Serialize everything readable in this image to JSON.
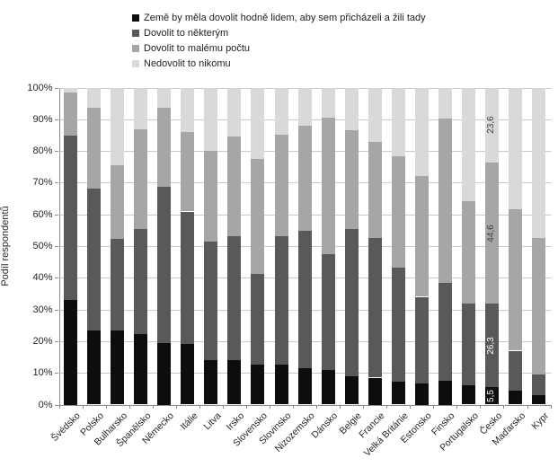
{
  "chart_data": {
    "type": "bar",
    "variant": "stacked-column-100",
    "title": "",
    "ylabel": "Podíl respondentů",
    "xlabel": "",
    "ylim": [
      0,
      100
    ],
    "ytick_step": 10,
    "ytick_suffix": "%",
    "grid": true,
    "legend_position": "top-left",
    "categories": [
      "Švédsko",
      "Polsko",
      "Bulharsko",
      "Španělsko",
      "Německo",
      "Itálie",
      "Litva",
      "Irsko",
      "Slovensko",
      "Slovinsko",
      "Nizozemsko",
      "Dánsko",
      "Belgie",
      "Francie",
      "Velká Británie",
      "Estonsko",
      "Finsko",
      "Portugalsko",
      "Česko",
      "Maďarsko",
      "Kypr"
    ],
    "series": [
      {
        "name": "Země by měla dovolit hodně lidem, aby sem přicházeli a žili tady",
        "color": "#0d0d0d",
        "values": [
          33.0,
          23.3,
          23.3,
          22.3,
          19.4,
          19.2,
          14.0,
          14.0,
          12.5,
          12.5,
          11.4,
          11.0,
          9.0,
          8.5,
          7.3,
          6.8,
          7.5,
          6.0,
          5.5,
          4.5,
          3.0
        ]
      },
      {
        "name": "Dovolit to některým",
        "color": "#595959",
        "values": [
          51.8,
          44.9,
          29.0,
          33.0,
          49.2,
          41.7,
          37.5,
          39.0,
          28.8,
          40.5,
          43.4,
          36.4,
          46.4,
          44.1,
          35.8,
          27.2,
          30.9,
          25.8,
          26.3,
          12.5,
          6.5
        ]
      },
      {
        "name": "Dovolit to malému počtu",
        "color": "#a6a6a6",
        "values": [
          13.6,
          25.3,
          23.2,
          31.4,
          25.1,
          25.1,
          28.5,
          31.5,
          36.3,
          32.0,
          33.2,
          43.1,
          31.1,
          30.4,
          35.2,
          38.0,
          51.7,
          32.3,
          44.6,
          44.5,
          43.0
        ]
      },
      {
        "name": "Nedovolit to nikomu",
        "color": "#d9d9d9",
        "values": [
          1.6,
          6.5,
          24.5,
          13.3,
          6.3,
          14.0,
          20.0,
          15.5,
          22.4,
          15.0,
          12.0,
          9.5,
          13.5,
          17.0,
          21.7,
          28.0,
          9.9,
          35.9,
          23.6,
          38.5,
          47.5
        ]
      }
    ],
    "data_labels": {
      "category": "Česko",
      "labels": [
        "5,5",
        "26,3",
        "44,6",
        "23,6"
      ],
      "label_colors": [
        "#ffffff",
        "#ffffff",
        "#404040",
        "#404040"
      ]
    },
    "colors": {
      "gridline": "#c9c9c9",
      "axis": "#8c8c8c",
      "text": "#262626"
    }
  }
}
